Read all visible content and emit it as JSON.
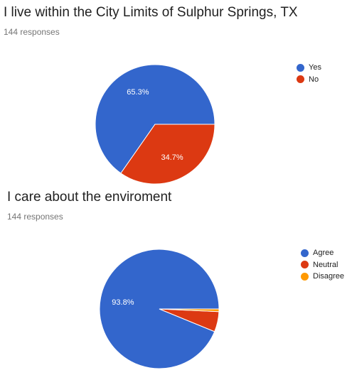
{
  "charts": [
    {
      "title": "I live within the City Limits of Sulphur Springs, TX",
      "responses": "144 responses",
      "chart_data": {
        "type": "pie",
        "categories": [
          "Yes",
          "No"
        ],
        "values": [
          65.3,
          34.7
        ],
        "labels": [
          "65.3%",
          "34.7%"
        ],
        "colors": [
          "#3366cc",
          "#dc3912"
        ],
        "legend_position": "right"
      }
    },
    {
      "title": "I care about the enviroment",
      "responses": "144 responses",
      "chart_data": {
        "type": "pie",
        "categories": [
          "Agree",
          "Neutral",
          "Disagree"
        ],
        "values": [
          93.8,
          5.5,
          0.7
        ],
        "labels": [
          "93.8%",
          "",
          ""
        ],
        "colors": [
          "#3366cc",
          "#dc3912",
          "#ff9900"
        ],
        "legend_position": "right"
      }
    }
  ]
}
